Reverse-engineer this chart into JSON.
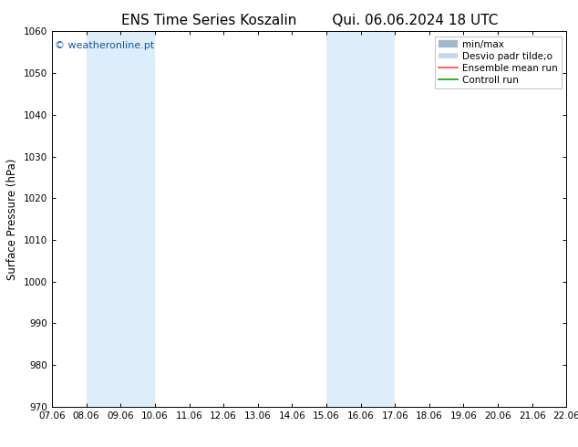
{
  "title_left": "ENS Time Series Koszalin",
  "title_right": "Qui. 06.06.2024 18 UTC",
  "ylabel": "Surface Pressure (hPa)",
  "ylim": [
    970,
    1060
  ],
  "yticks": [
    970,
    980,
    990,
    1000,
    1010,
    1020,
    1030,
    1040,
    1050,
    1060
  ],
  "xtick_labels": [
    "07.06",
    "08.06",
    "09.06",
    "10.06",
    "11.06",
    "12.06",
    "13.06",
    "14.06",
    "15.06",
    "16.06",
    "17.06",
    "18.06",
    "19.06",
    "20.06",
    "21.06",
    "22.06"
  ],
  "band_color": "#ddeef8",
  "background_color": "#ffffff",
  "watermark": "© weatheronline.pt",
  "watermark_color": "#1155aa",
  "title_fontsize": 11,
  "tick_fontsize": 7.5,
  "ylabel_fontsize": 8.5,
  "legend_fontsize": 7.5,
  "minmax_color": "#a0b8cc",
  "desvio_color": "#c5d8e5",
  "ensemble_color": "#ff4444",
  "control_color": "#00aa00"
}
